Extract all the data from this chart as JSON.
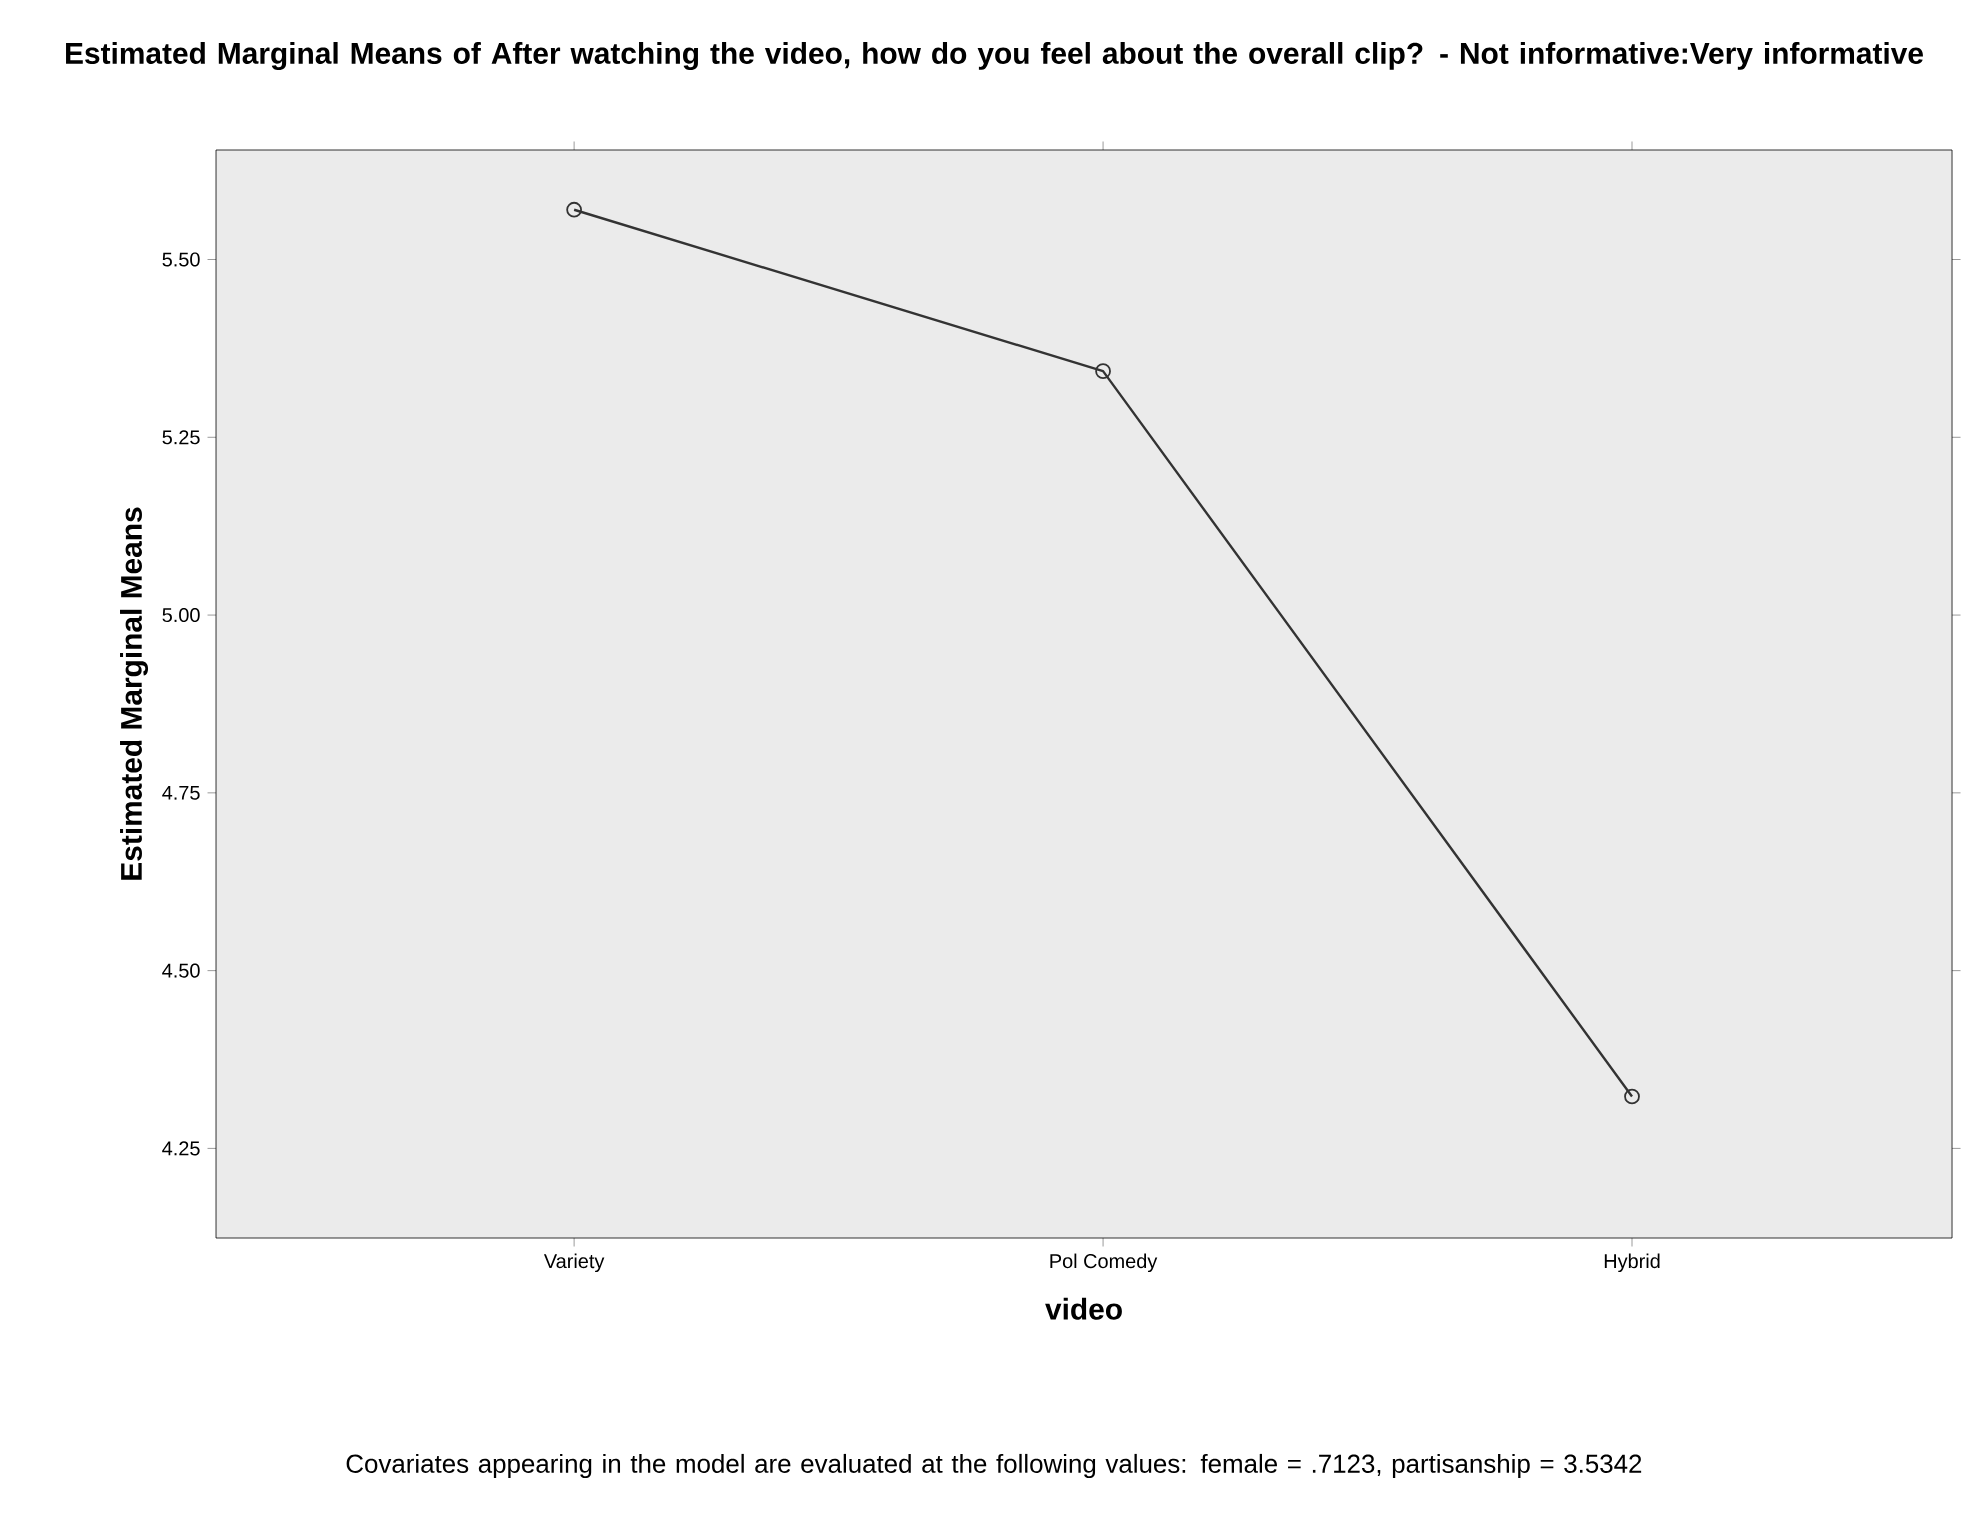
{
  "chart_data": {
    "type": "line",
    "title": "Estimated Marginal Means of After watching the video, how do you feel about the overall clip? - Not informative:Very informative",
    "xlabel": "video",
    "ylabel": "Estimated Marginal Means",
    "categories": [
      "Variety",
      "Pol Comedy",
      "Hybrid"
    ],
    "series": [
      {
        "color": "#333333",
        "values": [
          5.57,
          5.343,
          4.323
        ]
      }
    ],
    "marker": "circle",
    "line_style": "solid",
    "ylim": [
      4.124,
      5.654
    ],
    "yticks": [
      {
        "value": 4.25,
        "label": "4.25"
      },
      {
        "value": 4.5,
        "label": "4.50"
      },
      {
        "value": 4.75,
        "label": "4.75"
      },
      {
        "value": 5.0,
        "label": "5.00"
      },
      {
        "value": 5.25,
        "label": "5.25"
      },
      {
        "value": 5.5,
        "label": "5.50"
      }
    ],
    "annotations": [
      "Covariates appearing in the model are evaluated at the following values: female = .7123, partisanship = 3.5342"
    ]
  }
}
